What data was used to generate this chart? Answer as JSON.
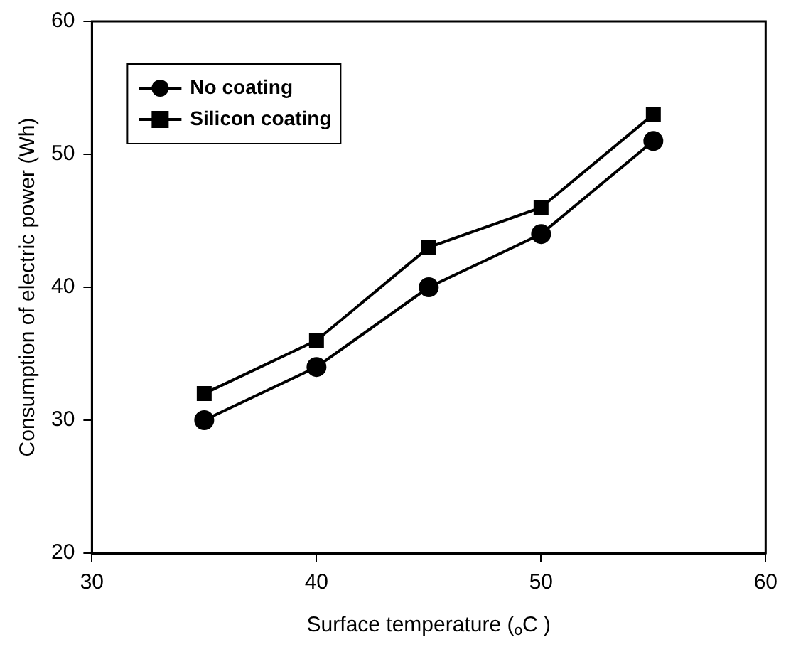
{
  "chart_data": {
    "type": "line",
    "xlabel": "Surface temperature ($_{o}$C )",
    "ylabel": "Consumption of electric power (Wh)",
    "x": [
      35,
      40,
      45,
      50,
      55
    ],
    "series": [
      {
        "name": "No coating",
        "color": "#000000",
        "marker": "circle",
        "values": [
          30,
          34,
          40,
          44,
          51
        ]
      },
      {
        "name": "Silicon coating",
        "color": "#000000",
        "marker": "square",
        "values": [
          32,
          36,
          43,
          46,
          53
        ]
      }
    ],
    "xlim": [
      30,
      60
    ],
    "xticks": [
      30,
      40,
      50,
      60
    ],
    "ylim": [
      20,
      60
    ],
    "yticks": [
      20,
      30,
      40,
      50,
      60
    ],
    "grid": false,
    "legend": "top left",
    "line_style": "solid"
  }
}
